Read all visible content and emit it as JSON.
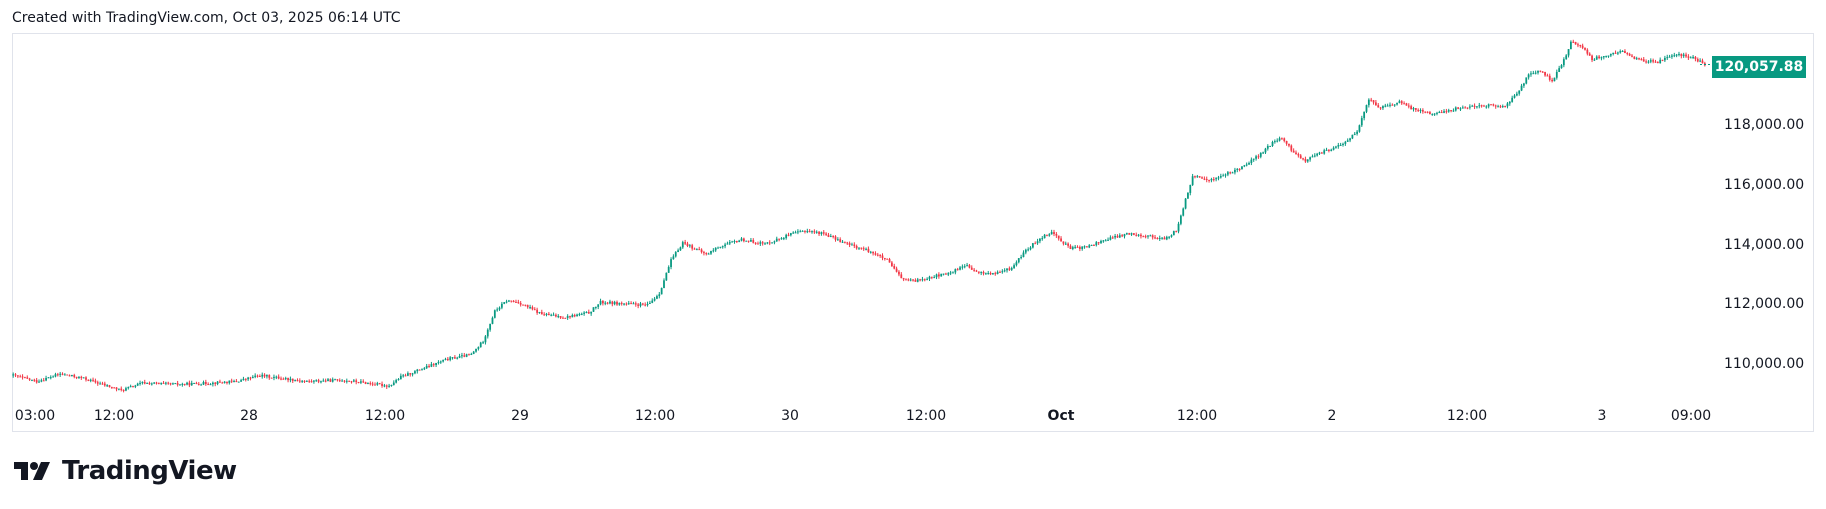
{
  "header": {
    "created_text": "Created with TradingView.com, Oct 03, 2025 06:14 UTC"
  },
  "branding": {
    "logo_text": "TradingView",
    "logo_icon": "tradingview-logo-icon"
  },
  "colors": {
    "up": "#089981",
    "down": "#f23645",
    "price_label_bg": "#089981",
    "border": "#e0e3eb"
  },
  "chart_data": {
    "type": "candlestick",
    "last_price_label": "120,057.88",
    "last_price": 120057.88,
    "ylim": [
      109000,
      121000
    ],
    "y_ticks": [
      {
        "value": 118000,
        "label": "118,000.00"
      },
      {
        "value": 116000,
        "label": "116,000.00"
      },
      {
        "value": 114000,
        "label": "114,000.00"
      },
      {
        "value": 112000,
        "label": "112,000.00"
      },
      {
        "value": 110000,
        "label": "110,000.00"
      }
    ],
    "x_ticks": [
      {
        "label": "03:00",
        "bold": false
      },
      {
        "label": "12:00",
        "bold": false
      },
      {
        "label": "28",
        "bold": false
      },
      {
        "label": "12:00",
        "bold": false
      },
      {
        "label": "29",
        "bold": false
      },
      {
        "label": "12:00",
        "bold": false
      },
      {
        "label": "30",
        "bold": false
      },
      {
        "label": "12:00",
        "bold": false
      },
      {
        "label": "Oct",
        "bold": true
      },
      {
        "label": "12:00",
        "bold": false
      },
      {
        "label": "2",
        "bold": false
      },
      {
        "label": "12:00",
        "bold": false
      },
      {
        "label": "3",
        "bold": false
      },
      {
        "label": "09:00",
        "bold": false
      }
    ],
    "close_path": [
      [
        0,
        109650
      ],
      [
        10,
        109450
      ],
      [
        20,
        109700
      ],
      [
        30,
        109550
      ],
      [
        40,
        109300
      ],
      [
        46,
        109150
      ],
      [
        55,
        109400
      ],
      [
        70,
        109350
      ],
      [
        85,
        109400
      ],
      [
        95,
        109450
      ],
      [
        105,
        109650
      ],
      [
        115,
        109550
      ],
      [
        125,
        109450
      ],
      [
        140,
        109500
      ],
      [
        150,
        109400
      ],
      [
        160,
        109300
      ],
      [
        165,
        109600
      ],
      [
        175,
        109900
      ],
      [
        185,
        110200
      ],
      [
        195,
        110350
      ],
      [
        200,
        110800
      ],
      [
        205,
        111800
      ],
      [
        210,
        112150
      ],
      [
        215,
        112100
      ],
      [
        225,
        111700
      ],
      [
        235,
        111600
      ],
      [
        245,
        111750
      ],
      [
        250,
        112100
      ],
      [
        260,
        112050
      ],
      [
        270,
        112000
      ],
      [
        275,
        112400
      ],
      [
        280,
        113500
      ],
      [
        285,
        114100
      ],
      [
        290,
        113900
      ],
      [
        295,
        113700
      ],
      [
        300,
        113950
      ],
      [
        310,
        114200
      ],
      [
        320,
        114050
      ],
      [
        330,
        114350
      ],
      [
        337,
        114500
      ],
      [
        345,
        114400
      ],
      [
        355,
        114050
      ],
      [
        365,
        113800
      ],
      [
        372,
        113500
      ],
      [
        378,
        112900
      ],
      [
        383,
        112800
      ],
      [
        390,
        112950
      ],
      [
        398,
        113050
      ],
      [
        405,
        113350
      ],
      [
        410,
        113100
      ],
      [
        418,
        113050
      ],
      [
        425,
        113250
      ],
      [
        430,
        113750
      ],
      [
        437,
        114250
      ],
      [
        442,
        114450
      ],
      [
        450,
        113900
      ],
      [
        457,
        113950
      ],
      [
        465,
        114200
      ],
      [
        475,
        114400
      ],
      [
        485,
        114300
      ],
      [
        490,
        114200
      ],
      [
        495,
        114500
      ],
      [
        502,
        116300
      ],
      [
        510,
        116200
      ],
      [
        520,
        116500
      ],
      [
        530,
        117000
      ],
      [
        537,
        117500
      ],
      [
        540,
        117600
      ],
      [
        545,
        117100
      ],
      [
        550,
        116850
      ],
      [
        558,
        117150
      ],
      [
        565,
        117350
      ],
      [
        572,
        117800
      ],
      [
        577,
        118900
      ],
      [
        582,
        118600
      ],
      [
        590,
        118800
      ],
      [
        595,
        118600
      ],
      [
        605,
        118400
      ],
      [
        615,
        118600
      ],
      [
        625,
        118700
      ],
      [
        635,
        118650
      ],
      [
        640,
        119100
      ],
      [
        645,
        119700
      ],
      [
        650,
        119850
      ],
      [
        655,
        119500
      ],
      [
        660,
        120200
      ],
      [
        663,
        120800
      ],
      [
        668,
        120650
      ],
      [
        672,
        120250
      ],
      [
        678,
        120350
      ],
      [
        685,
        120500
      ],
      [
        692,
        120200
      ],
      [
        700,
        120150
      ],
      [
        708,
        120400
      ],
      [
        715,
        120300
      ],
      [
        720,
        120057.88
      ]
    ]
  }
}
